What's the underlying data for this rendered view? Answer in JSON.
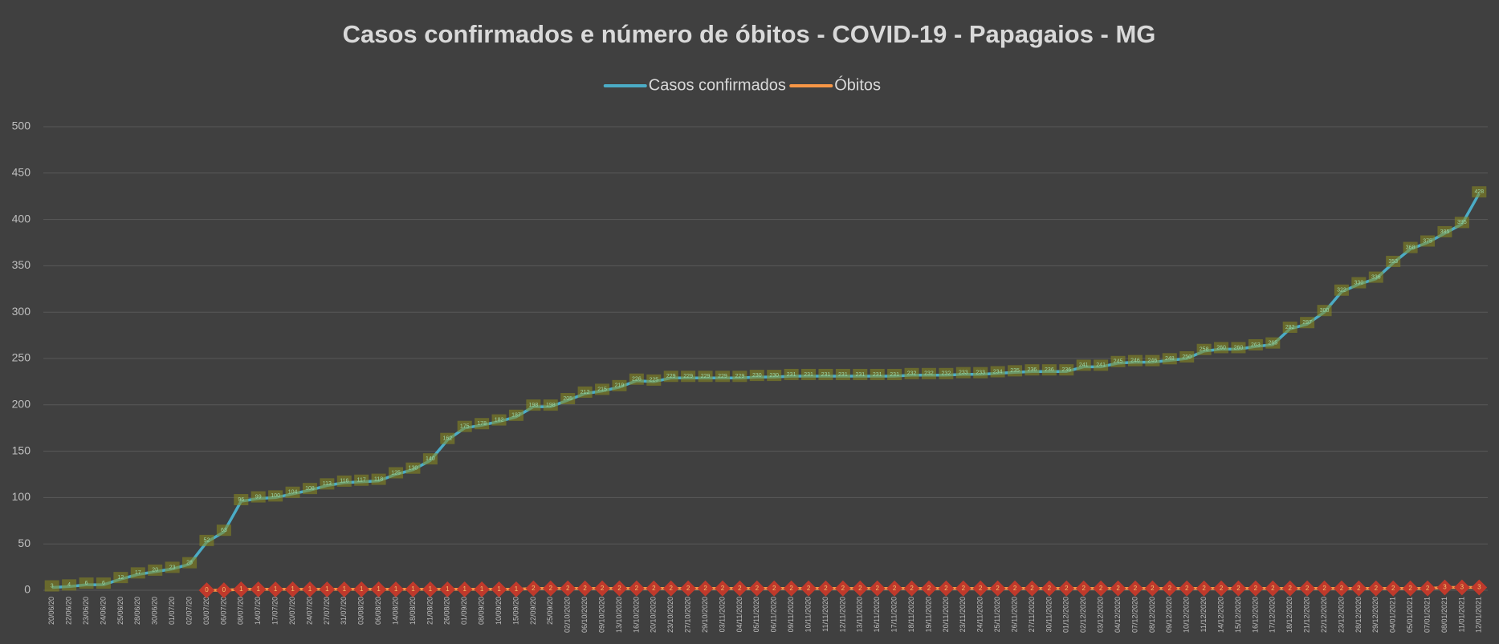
{
  "chart_data": {
    "type": "line",
    "title": "Casos confirmados e número de óbitos - COVID-19 - Papagaios - MG",
    "categories": [
      "20/06/20",
      "22/06/20",
      "23/06/20",
      "24/06/20",
      "25/06/20",
      "28/06/20",
      "30/06/20",
      "01/07/20",
      "02/07/20",
      "03/07/20",
      "06/07/20",
      "08/07/20",
      "14/07/20",
      "17/07/20",
      "20/07/20",
      "24/07/20",
      "27/07/20",
      "31/07/20",
      "03/08/20",
      "06/08/20",
      "14/08/20",
      "18/08/20",
      "21/08/20",
      "26/08/20",
      "01/09/20",
      "08/09/20",
      "10/09/20",
      "15/09/20",
      "22/09/20",
      "25/09/20",
      "02/10/2020",
      "06/10/2020",
      "09/10/2020",
      "13/10/2020",
      "16/10/2020",
      "20/10/2020",
      "23/10/2020",
      "27/10/2020",
      "29/10/2020",
      "03/11/2020",
      "04/11/2020",
      "05/11/2020",
      "06/11/2020",
      "09/11/2020",
      "10/11/2020",
      "11/11/2020",
      "12/11/2020",
      "13/11/2020",
      "16/11/2020",
      "17/11/2020",
      "18/11/2020",
      "19/11/2020",
      "20/11/2020",
      "23/11/2020",
      "24/11/2020",
      "25/11/2020",
      "26/11/2020",
      "27/11/2020",
      "30/11/2020",
      "01/12/2020",
      "02/12/2020",
      "03/12/2020",
      "04/12/2020",
      "07/12/2020",
      "08/12/2020",
      "09/12/2020",
      "10/12/2020",
      "11/12/2020",
      "14/12/2020",
      "15/12/2020",
      "16/12/2020",
      "17/12/2020",
      "18/12/2020",
      "21/12/2020",
      "22/12/2020",
      "23/12/2020",
      "28/12/2020",
      "29/12/2020",
      "04/01/2021",
      "05/01/2021",
      "07/01/2021",
      "08/01/2021",
      "11/01/2021",
      "12/01/2021"
    ],
    "series": [
      {
        "name": "Casos confirmados",
        "color": "#4bacc6",
        "values": [
          3,
          4,
          6,
          6,
          12,
          17,
          20,
          23,
          28,
          52,
          63,
          96,
          99,
          100,
          104,
          108,
          113,
          116,
          117,
          118,
          125,
          130,
          140,
          162,
          175,
          178,
          182,
          187,
          198,
          198,
          205,
          212,
          215,
          219,
          226,
          225,
          229,
          229,
          229,
          229,
          229,
          230,
          230,
          231,
          231,
          231,
          231,
          231,
          231,
          231,
          232,
          232,
          232,
          233,
          233,
          234,
          235,
          236,
          236,
          236,
          241,
          241,
          245,
          246,
          246,
          248,
          250,
          258,
          260,
          260,
          263,
          265,
          282,
          287,
          300,
          322,
          330,
          336,
          353,
          368,
          375,
          385,
          395,
          428
        ]
      },
      {
        "name": "Óbitos",
        "color": "#f79646",
        "values": [
          null,
          null,
          null,
          null,
          null,
          null,
          null,
          null,
          null,
          0,
          0,
          1,
          1,
          1,
          1,
          1,
          1,
          1,
          1,
          1,
          1,
          1,
          1,
          1,
          1,
          1,
          1,
          1,
          2,
          2,
          2,
          2,
          2,
          2,
          2,
          2,
          2,
          2,
          2,
          2,
          2,
          2,
          2,
          2,
          2,
          2,
          2,
          2,
          2,
          2,
          2,
          2,
          2,
          2,
          2,
          2,
          2,
          2,
          2,
          2,
          2,
          2,
          2,
          2,
          2,
          2,
          2,
          2,
          2,
          2,
          2,
          2,
          2,
          2,
          2,
          2,
          2,
          2,
          2,
          2,
          2,
          3,
          3,
          3
        ]
      }
    ],
    "ylim": [
      0,
      500
    ],
    "yticks": [
      0,
      50,
      100,
      150,
      200,
      250,
      300,
      350,
      400,
      450,
      500
    ],
    "grid": true,
    "legend": "top"
  }
}
